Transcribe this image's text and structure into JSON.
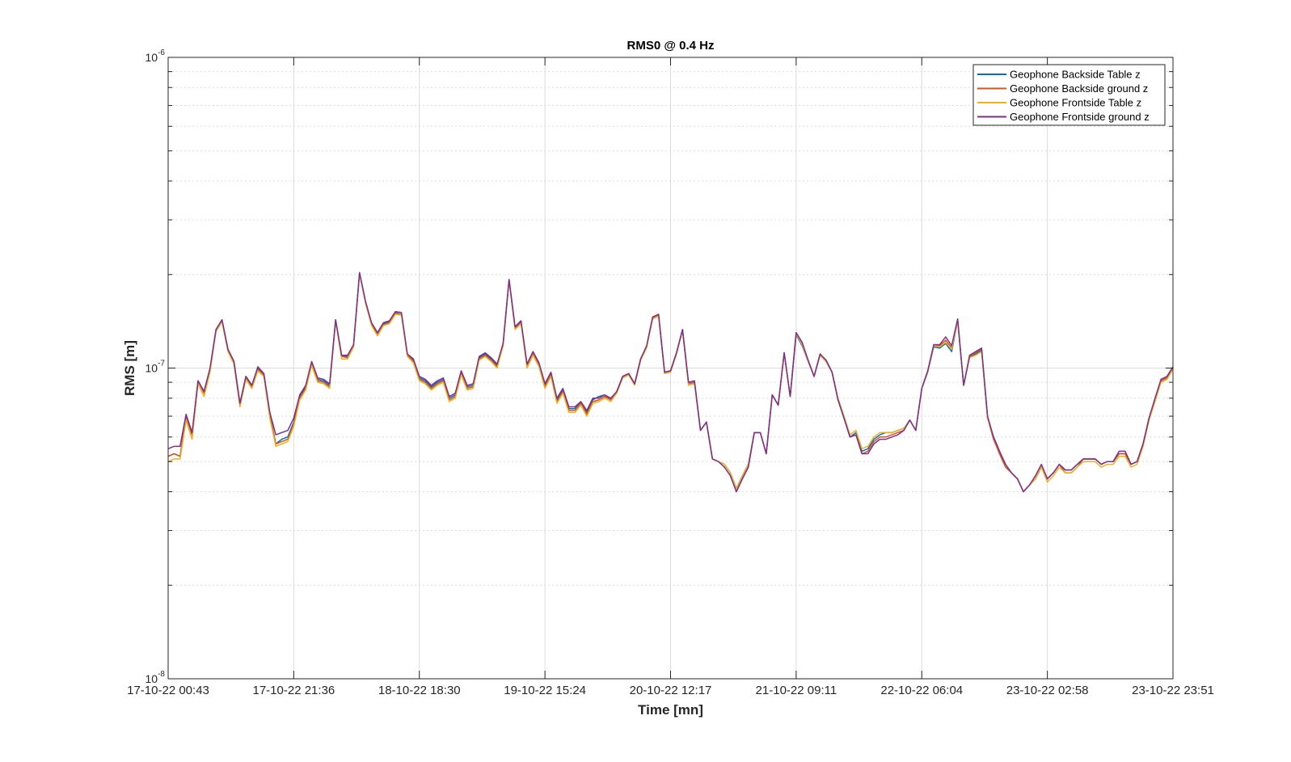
{
  "chart_data": {
    "type": "line",
    "title": "RMS0 @ 0.4 Hz",
    "xlabel": "Time [mn]",
    "ylabel": "RMS [m]",
    "yscale": "log",
    "ylim": [
      1e-08,
      1e-06
    ],
    "y_tick_labels": [
      {
        "base": "10",
        "exp": "-8",
        "value": 1e-08
      },
      {
        "base": "10",
        "exp": "-7",
        "value": 1e-07
      },
      {
        "base": "10",
        "exp": "-6",
        "value": 1e-06
      }
    ],
    "x_tick_labels": [
      "17-10-22 00:43",
      "17-10-22 21:36",
      "18-10-22 18:30",
      "19-10-22 15:24",
      "20-10-22 12:17",
      "21-10-22 09:11",
      "22-10-22 06:04",
      "23-10-22 02:58",
      "23-10-22 23:51"
    ],
    "grid": true,
    "legend_position": "top-right",
    "colors": {
      "series": [
        "#0072BD",
        "#D95319",
        "#EDB120",
        "#7E2F8E"
      ],
      "axis": "#262626",
      "grid": "#dcdcdc"
    },
    "series": [
      {
        "name": "Geophone Backside Table z",
        "values": [
          5.2e-08,
          5.3e-08,
          5.2e-08,
          7e-08,
          6.1e-08,
          9.1e-08,
          8.4e-08,
          9.9e-08,
          1.33e-07,
          1.43e-07,
          1.15e-07,
          1.05e-07,
          7.7e-08,
          9.4e-08,
          8.8e-08,
          1e-07,
          9.6e-08,
          7.1e-08,
          5.7e-08,
          5.9e-08,
          6e-08,
          6.7e-08,
          8.1e-08,
          8.7e-08,
          1.04e-07,
          9.2e-08,
          9.1e-08,
          8.8e-08,
          1.43e-07,
          1.1e-07,
          1.09e-07,
          1.18e-07,
          2.02e-07,
          1.63e-07,
          1.39e-07,
          1.29e-07,
          1.39e-07,
          1.41e-07,
          1.51e-07,
          1.49e-07,
          1.1e-07,
          1.06e-07,
          9.3e-08,
          9.1e-08,
          8.7e-08,
          9e-08,
          9.2e-08,
          8e-08,
          8.2e-08,
          9.7e-08,
          8.7e-08,
          8.8e-08,
          1.08e-07,
          1.11e-07,
          1.07e-07,
          1.02e-07,
          1.19e-07,
          1.92e-07,
          1.35e-07,
          1.41e-07,
          1.02e-07,
          1.12e-07,
          1.03e-07,
          8.8e-08,
          9.6e-08,
          7.9e-08,
          8.5e-08,
          7.4e-08,
          7.4e-08,
          7.8e-08,
          7.2e-08,
          7.9e-08,
          8.1e-08,
          8.2e-08,
          7.9e-08,
          8.4e-08,
          9.4e-08,
          9.6e-08,
          8.9e-08,
          1.07e-07,
          1.17e-07,
          1.44e-07,
          1.47e-07,
          9.7e-08,
          9.8e-08,
          1.12e-07,
          1.33e-07,
          8.9e-08,
          9e-08,
          6.3e-08,
          6.7e-08,
          5.1e-08,
          5e-08,
          4.9e-08,
          4.6e-08,
          4.1e-08,
          4.5e-08,
          4.9e-08,
          6.2e-08,
          6.2e-08,
          5.3e-08,
          8.2e-08,
          7.6e-08,
          1.12e-07,
          8.1e-08,
          1.28e-07,
          1.18e-07,
          1.05e-07,
          9.4e-08,
          1.1e-07,
          1.05e-07,
          9.7e-08,
          7.9e-08,
          6.9e-08,
          6e-08,
          6.2e-08,
          5.4e-08,
          5.5e-08,
          5.9e-08,
          6.1e-08,
          6.2e-08,
          6.2e-08,
          6.3e-08,
          6.4e-08,
          6.8e-08,
          6.3e-08,
          8.6e-08,
          9.7e-08,
          1.17e-07,
          1.16e-07,
          1.2e-07,
          1.13e-07,
          1.42e-07,
          8.8e-08,
          1.08e-07,
          1.11e-07,
          1.14e-07,
          6.9e-08,
          6e-08,
          5.4e-08,
          4.9e-08,
          4.6e-08,
          4.4e-08,
          4e-08,
          4.2e-08,
          4.4e-08,
          4.8e-08,
          4.4e-08,
          4.6e-08,
          4.9e-08,
          4.7e-08,
          4.7e-08,
          4.9e-08,
          5.1e-08,
          5.1e-08,
          5.1e-08,
          4.9e-08,
          5e-08,
          5e-08,
          5.3e-08,
          5.3e-08,
          4.9e-08,
          5e-08,
          5.7e-08,
          6.9e-08,
          7.9e-08,
          9.1e-08,
          9.3e-08,
          1e-07
        ]
      },
      {
        "name": "Geophone Backside ground z",
        "values": [
          5.2e-08,
          5.3e-08,
          5.2e-08,
          7e-08,
          6.1e-08,
          9.1e-08,
          8.3e-08,
          9.9e-08,
          1.32e-07,
          1.42e-07,
          1.14e-07,
          1.04e-07,
          7.6e-08,
          9.3e-08,
          8.7e-08,
          9.9e-08,
          9.5e-08,
          7e-08,
          5.7e-08,
          5.8e-08,
          5.9e-08,
          6.6e-08,
          8e-08,
          8.6e-08,
          1.03e-07,
          9.1e-08,
          9e-08,
          8.7e-08,
          1.42e-07,
          1.09e-07,
          1.08e-07,
          1.17e-07,
          2.02e-07,
          1.62e-07,
          1.38e-07,
          1.28e-07,
          1.38e-07,
          1.4e-07,
          1.5e-07,
          1.49e-07,
          1.1e-07,
          1.05e-07,
          9.2e-08,
          9e-08,
          8.6e-08,
          8.9e-08,
          9.1e-08,
          7.9e-08,
          8.1e-08,
          9.6e-08,
          8.6e-08,
          8.7e-08,
          1.07e-07,
          1.1e-07,
          1.06e-07,
          1.01e-07,
          1.18e-07,
          1.92e-07,
          1.34e-07,
          1.4e-07,
          1.01e-07,
          1.11e-07,
          1.02e-07,
          8.7e-08,
          9.5e-08,
          7.8e-08,
          8.4e-08,
          7.3e-08,
          7.3e-08,
          7.7e-08,
          7.1e-08,
          7.8e-08,
          7.9e-08,
          8.1e-08,
          7.9e-08,
          8.4e-08,
          9.4e-08,
          9.6e-08,
          8.9e-08,
          1.07e-07,
          1.17e-07,
          1.45e-07,
          1.48e-07,
          9.7e-08,
          9.8e-08,
          1.12e-07,
          1.33e-07,
          8.9e-08,
          9e-08,
          6.3e-08,
          6.7e-08,
          5.1e-08,
          5e-08,
          4.9e-08,
          4.6e-08,
          4e-08,
          4.4e-08,
          4.8e-08,
          6.2e-08,
          6.2e-08,
          5.3e-08,
          8.2e-08,
          7.6e-08,
          1.12e-07,
          8.1e-08,
          1.3e-07,
          1.2e-07,
          1.06e-07,
          9.4e-08,
          1.11e-07,
          1.06e-07,
          9.7e-08,
          7.9e-08,
          6.9e-08,
          6e-08,
          6.1e-08,
          5.3e-08,
          5.4e-08,
          5.8e-08,
          6e-08,
          6e-08,
          6.1e-08,
          6.2e-08,
          6.3e-08,
          6.8e-08,
          6.3e-08,
          8.6e-08,
          9.8e-08,
          1.18e-07,
          1.18e-07,
          1.23e-07,
          1.16e-07,
          1.43e-07,
          8.8e-08,
          1.09e-07,
          1.12e-07,
          1.15e-07,
          6.9e-08,
          5.9e-08,
          5.3e-08,
          4.8e-08,
          4.6e-08,
          4.4e-08,
          4e-08,
          4.2e-08,
          4.4e-08,
          4.8e-08,
          4.4e-08,
          4.6e-08,
          4.9e-08,
          4.6e-08,
          4.6e-08,
          4.8e-08,
          5.1e-08,
          5.1e-08,
          5.1e-08,
          4.9e-08,
          5e-08,
          5e-08,
          5.3e-08,
          5.3e-08,
          4.9e-08,
          5e-08,
          5.7e-08,
          6.9e-08,
          7.9e-08,
          9.1e-08,
          9.3e-08,
          1e-07
        ]
      },
      {
        "name": "Geophone Frontside Table z",
        "values": [
          5e-08,
          5.1e-08,
          5.1e-08,
          6.8e-08,
          5.9e-08,
          8.9e-08,
          8.1e-08,
          9.7e-08,
          1.31e-07,
          1.41e-07,
          1.13e-07,
          1.03e-07,
          7.5e-08,
          9.2e-08,
          8.6e-08,
          9.8e-08,
          9.4e-08,
          6.9e-08,
          5.6e-08,
          5.7e-08,
          5.8e-08,
          6.5e-08,
          7.9e-08,
          8.5e-08,
          1.02e-07,
          9e-08,
          8.9e-08,
          8.6e-08,
          1.42e-07,
          1.07e-07,
          1.07e-07,
          1.17e-07,
          2.02e-07,
          1.62e-07,
          1.37e-07,
          1.27e-07,
          1.37e-07,
          1.39e-07,
          1.49e-07,
          1.48e-07,
          1.09e-07,
          1.04e-07,
          9.1e-08,
          8.9e-08,
          8.5e-08,
          8.8e-08,
          9e-08,
          7.8e-08,
          8e-08,
          9.5e-08,
          8.5e-08,
          8.6e-08,
          1.06e-07,
          1.09e-07,
          1.05e-07,
          1e-07,
          1.18e-07,
          1.92e-07,
          1.33e-07,
          1.39e-07,
          1e-07,
          1.1e-07,
          1.01e-07,
          8.6e-08,
          9.4e-08,
          7.7e-08,
          8.3e-08,
          7.2e-08,
          7.2e-08,
          7.6e-08,
          7e-08,
          7.7e-08,
          7.8e-08,
          8e-08,
          7.8e-08,
          8.3e-08,
          9.3e-08,
          9.5e-08,
          8.8e-08,
          1.06e-07,
          1.16e-07,
          1.44e-07,
          1.47e-07,
          9.6e-08,
          9.7e-08,
          1.11e-07,
          1.32e-07,
          8.8e-08,
          8.9e-08,
          6.3e-08,
          6.7e-08,
          5.1e-08,
          5e-08,
          4.9e-08,
          4.6e-08,
          4.1e-08,
          4.5e-08,
          4.9e-08,
          6.2e-08,
          6.2e-08,
          5.3e-08,
          8.2e-08,
          7.6e-08,
          1.12e-07,
          8.1e-08,
          1.29e-07,
          1.19e-07,
          1.05e-07,
          9.4e-08,
          1.1e-07,
          1.05e-07,
          9.7e-08,
          8e-08,
          7e-08,
          6.1e-08,
          6.3e-08,
          5.5e-08,
          5.6e-08,
          6e-08,
          6.2e-08,
          6.2e-08,
          6.2e-08,
          6.3e-08,
          6.4e-08,
          6.8e-08,
          6.3e-08,
          8.6e-08,
          9.7e-08,
          1.18e-07,
          1.17e-07,
          1.21e-07,
          1.15e-07,
          1.42e-07,
          8.8e-08,
          1.08e-07,
          1.1e-07,
          1.13e-07,
          6.9e-08,
          6e-08,
          5.4e-08,
          4.9e-08,
          4.6e-08,
          4.4e-08,
          4e-08,
          4.2e-08,
          4.4e-08,
          4.8e-08,
          4.3e-08,
          4.5e-08,
          4.8e-08,
          4.6e-08,
          4.6e-08,
          4.8e-08,
          5e-08,
          5e-08,
          5e-08,
          4.8e-08,
          4.9e-08,
          4.9e-08,
          5.2e-08,
          5.2e-08,
          4.8e-08,
          4.9e-08,
          5.6e-08,
          6.8e-08,
          7.8e-08,
          9e-08,
          9.2e-08,
          9.9e-08
        ]
      },
      {
        "name": "Geophone Frontside ground z",
        "values": [
          5.5e-08,
          5.6e-08,
          5.6e-08,
          7.1e-08,
          6.2e-08,
          9.1e-08,
          8.4e-08,
          1e-07,
          1.33e-07,
          1.43e-07,
          1.15e-07,
          1.05e-07,
          7.7e-08,
          9.4e-08,
          8.8e-08,
          1.01e-07,
          9.6e-08,
          7.2e-08,
          6.1e-08,
          6.2e-08,
          6.3e-08,
          6.9e-08,
          8.2e-08,
          8.8e-08,
          1.05e-07,
          9.3e-08,
          9.2e-08,
          8.9e-08,
          1.43e-07,
          1.1e-07,
          1.1e-07,
          1.19e-07,
          2.03e-07,
          1.64e-07,
          1.4e-07,
          1.3e-07,
          1.4e-07,
          1.42e-07,
          1.52e-07,
          1.51e-07,
          1.11e-07,
          1.07e-07,
          9.4e-08,
          9.2e-08,
          8.8e-08,
          9.1e-08,
          9.3e-08,
          8.1e-08,
          8.3e-08,
          9.8e-08,
          8.8e-08,
          8.9e-08,
          1.09e-07,
          1.12e-07,
          1.08e-07,
          1.03e-07,
          1.2e-07,
          1.93e-07,
          1.36e-07,
          1.42e-07,
          1.03e-07,
          1.13e-07,
          1.04e-07,
          8.9e-08,
          9.7e-08,
          8e-08,
          8.6e-08,
          7.5e-08,
          7.5e-08,
          7.8e-08,
          7.3e-08,
          8e-08,
          8e-08,
          8.2e-08,
          8e-08,
          8.4e-08,
          9.4e-08,
          9.6e-08,
          8.9e-08,
          1.07e-07,
          1.18e-07,
          1.46e-07,
          1.49e-07,
          9.7e-08,
          9.8e-08,
          1.12e-07,
          1.33e-07,
          9e-08,
          9.1e-08,
          6.3e-08,
          6.7e-08,
          5.1e-08,
          5e-08,
          4.8e-08,
          4.5e-08,
          4e-08,
          4.4e-08,
          4.8e-08,
          6.2e-08,
          6.2e-08,
          5.3e-08,
          8.2e-08,
          7.6e-08,
          1.12e-07,
          8.1e-08,
          1.3e-07,
          1.21e-07,
          1.06e-07,
          9.4e-08,
          1.11e-07,
          1.06e-07,
          9.7e-08,
          7.9e-08,
          6.9e-08,
          6e-08,
          6.1e-08,
          5.3e-08,
          5.3e-08,
          5.7e-08,
          5.9e-08,
          5.9e-08,
          6e-08,
          6.1e-08,
          6.3e-08,
          6.8e-08,
          6.3e-08,
          8.6e-08,
          9.8e-08,
          1.19e-07,
          1.19e-07,
          1.26e-07,
          1.18e-07,
          1.44e-07,
          8.8e-08,
          1.1e-07,
          1.13e-07,
          1.16e-07,
          7e-08,
          6e-08,
          5.4e-08,
          4.9e-08,
          4.6e-08,
          4.4e-08,
          4e-08,
          4.2e-08,
          4.5e-08,
          4.9e-08,
          4.4e-08,
          4.6e-08,
          4.9e-08,
          4.7e-08,
          4.7e-08,
          4.9e-08,
          5.1e-08,
          5.1e-08,
          5.1e-08,
          4.9e-08,
          5e-08,
          5e-08,
          5.4e-08,
          5.4e-08,
          4.9e-08,
          5e-08,
          5.7e-08,
          6.9e-08,
          8e-08,
          9.2e-08,
          9.4e-08,
          1.01e-07
        ]
      }
    ]
  }
}
